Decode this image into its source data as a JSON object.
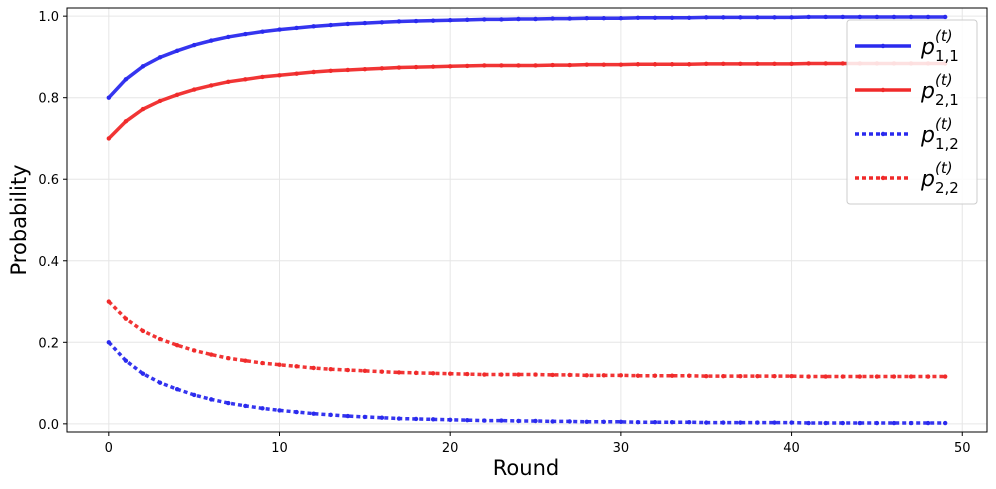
{
  "chart_data": {
    "type": "line",
    "x_label": "Round",
    "y_label": "Probability",
    "x": [
      0,
      1,
      2,
      3,
      4,
      5,
      6,
      7,
      8,
      9,
      10,
      11,
      12,
      13,
      14,
      15,
      16,
      17,
      18,
      19,
      20,
      21,
      22,
      23,
      24,
      25,
      26,
      27,
      28,
      29,
      30,
      31,
      32,
      33,
      34,
      35,
      36,
      37,
      38,
      39,
      40,
      41,
      42,
      43,
      44,
      45,
      46,
      47,
      48,
      49
    ],
    "xlim": [
      -2.45,
      51.45
    ],
    "xticks": [
      0,
      10,
      20,
      30,
      40,
      50
    ],
    "ylim": [
      -0.02,
      1.02
    ],
    "yticks": [
      {
        "value": 0,
        "label": "0.0"
      },
      0.2,
      0.4,
      0.6,
      0.8,
      {
        "value": 1,
        "label": "1.0"
      }
    ],
    "grid": true,
    "legend": "upper right",
    "series": [
      {
        "name": "p",
        "subscript": "1,1",
        "superscript": "(t)",
        "color": "#2a2aee",
        "linestyle": "solid",
        "values": [
          0.8,
          0.845,
          0.877,
          0.899,
          0.915,
          0.929,
          0.94,
          0.949,
          0.956,
          0.962,
          0.967,
          0.971,
          0.975,
          0.978,
          0.981,
          0.983,
          0.985,
          0.987,
          0.988,
          0.989,
          0.99,
          0.991,
          0.992,
          0.992,
          0.993,
          0.993,
          0.994,
          0.994,
          0.995,
          0.995,
          0.995,
          0.996,
          0.996,
          0.996,
          0.996,
          0.997,
          0.997,
          0.997,
          0.997,
          0.997,
          0.997,
          0.998,
          0.998,
          0.998,
          0.998,
          0.998,
          0.998,
          0.998,
          0.998,
          0.998
        ]
      },
      {
        "name": "p",
        "subscript": "2,1",
        "superscript": "(t)",
        "color": "#f02a2a",
        "linestyle": "solid",
        "values": [
          0.7,
          0.742,
          0.772,
          0.792,
          0.807,
          0.82,
          0.83,
          0.839,
          0.845,
          0.851,
          0.855,
          0.859,
          0.863,
          0.866,
          0.868,
          0.87,
          0.872,
          0.874,
          0.875,
          0.876,
          0.877,
          0.878,
          0.879,
          0.879,
          0.879,
          0.879,
          0.88,
          0.88,
          0.881,
          0.881,
          0.881,
          0.882,
          0.882,
          0.882,
          0.882,
          0.883,
          0.883,
          0.883,
          0.883,
          0.883,
          0.883,
          0.884,
          0.884,
          0.884,
          0.884,
          0.884,
          0.884,
          0.884,
          0.884,
          0.884
        ]
      },
      {
        "name": "p",
        "subscript": "1,2",
        "superscript": "(t)",
        "color": "#2a2aee",
        "linestyle": "dotted",
        "values": [
          0.2,
          0.155,
          0.123,
          0.101,
          0.085,
          0.071,
          0.06,
          0.051,
          0.044,
          0.038,
          0.033,
          0.029,
          0.025,
          0.022,
          0.019,
          0.017,
          0.015,
          0.013,
          0.012,
          0.011,
          0.01,
          0.009,
          0.008,
          0.008,
          0.007,
          0.007,
          0.006,
          0.006,
          0.005,
          0.005,
          0.005,
          0.004,
          0.004,
          0.004,
          0.004,
          0.003,
          0.003,
          0.003,
          0.003,
          0.003,
          0.003,
          0.002,
          0.002,
          0.002,
          0.002,
          0.002,
          0.002,
          0.002,
          0.002,
          0.002
        ]
      },
      {
        "name": "p",
        "subscript": "2,2",
        "superscript": "(t)",
        "color": "#f02a2a",
        "linestyle": "dotted",
        "values": [
          0.3,
          0.258,
          0.228,
          0.208,
          0.193,
          0.18,
          0.17,
          0.161,
          0.155,
          0.149,
          0.145,
          0.141,
          0.137,
          0.134,
          0.132,
          0.13,
          0.128,
          0.126,
          0.125,
          0.124,
          0.123,
          0.122,
          0.121,
          0.121,
          0.121,
          0.121,
          0.12,
          0.12,
          0.119,
          0.119,
          0.119,
          0.118,
          0.118,
          0.118,
          0.118,
          0.117,
          0.117,
          0.117,
          0.117,
          0.117,
          0.117,
          0.116,
          0.116,
          0.116,
          0.116,
          0.116,
          0.116,
          0.116,
          0.116,
          0.116
        ]
      }
    ]
  }
}
